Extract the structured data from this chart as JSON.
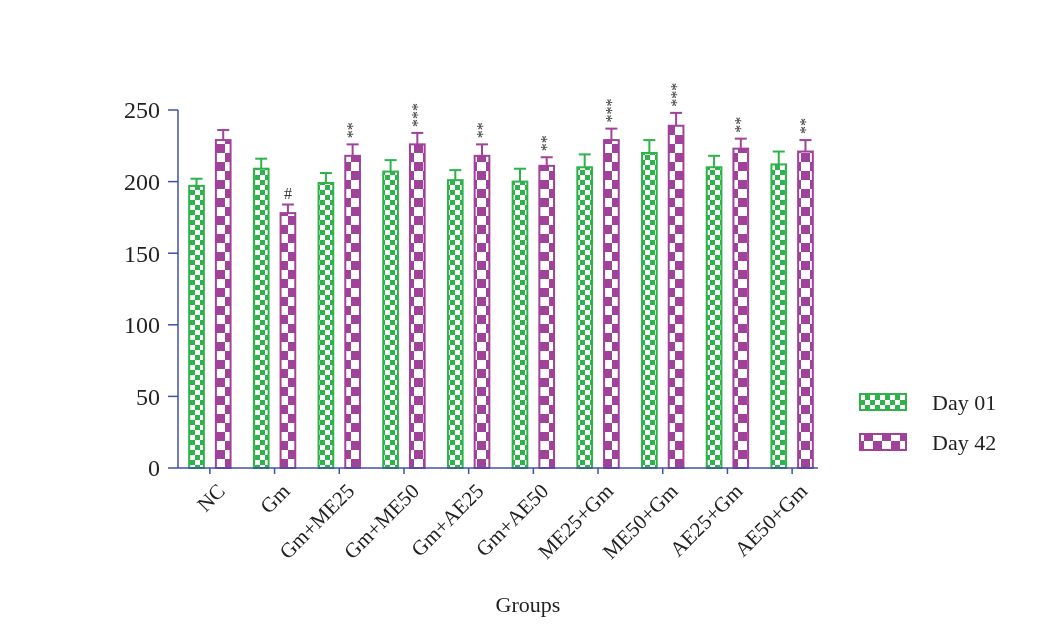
{
  "chart_data": {
    "type": "bar",
    "xlabel": "Groups",
    "categories": [
      "NC",
      "Gm",
      "Gm+ME25",
      "Gm+ME50",
      "Gm+AE25",
      "Gm+AE50",
      "ME25+Gm",
      "ME50+Gm",
      "AE25+Gm",
      "AE50+Gm"
    ],
    "series": [
      {
        "name": "Day 01",
        "color": "#2db34a",
        "values": [
          197,
          209,
          199,
          207,
          201,
          200,
          210,
          220,
          210,
          212
        ],
        "errors": [
          5,
          7,
          7,
          8,
          7,
          9,
          9,
          9,
          8,
          9
        ]
      },
      {
        "name": "Day 42",
        "color": "#a0429a",
        "values": [
          229,
          178,
          218,
          226,
          218,
          211,
          229,
          239,
          223,
          221
        ],
        "errors": [
          7,
          6,
          8,
          8,
          8,
          6,
          8,
          9,
          7,
          8
        ],
        "value_labels": [
          null,
          "#",
          "**",
          "***",
          "**",
          "**",
          "***",
          "***",
          "**",
          "**"
        ]
      }
    ],
    "ylim": [
      0,
      250
    ],
    "yticks": [
      0,
      50,
      100,
      150,
      200,
      250
    ],
    "grid": false,
    "legend": "right"
  }
}
